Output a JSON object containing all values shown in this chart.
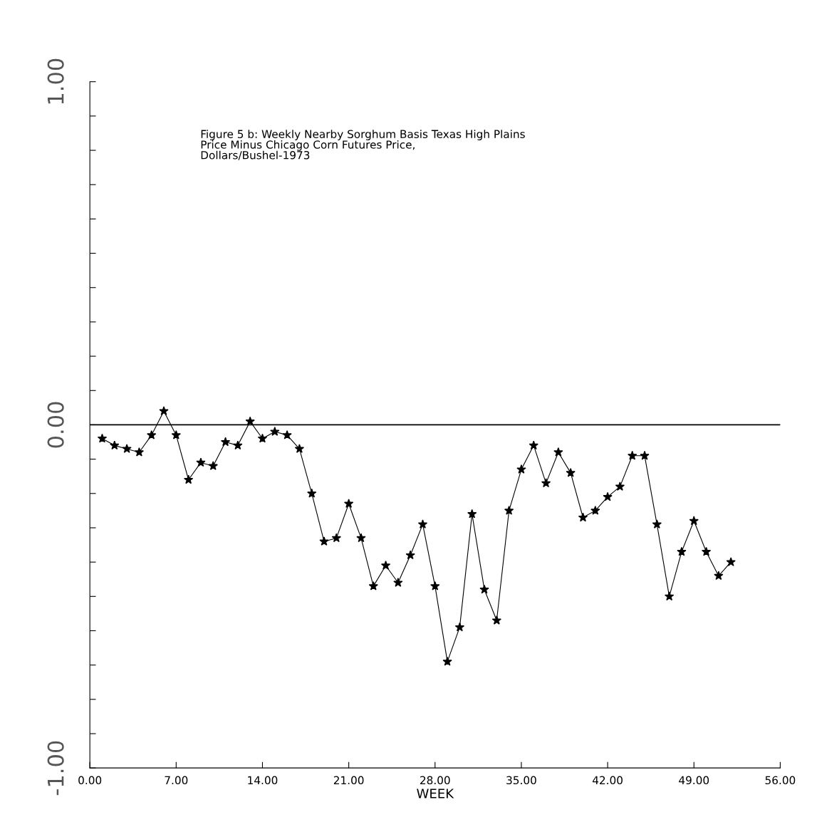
{
  "chart_data": {
    "type": "line",
    "title": "Figure 5 b: Weekly Nearby Sorghum Basis Texas High Plains\nPrice Minus Chicago Corn Futures Price,\nDollars/Bushel-1973",
    "xlabel": "WEEK",
    "x": [
      1,
      2,
      3,
      4,
      5,
      6,
      7,
      8,
      9,
      10,
      11,
      12,
      13,
      14,
      15,
      16,
      17,
      18,
      19,
      20,
      21,
      22,
      23,
      24,
      25,
      26,
      27,
      28,
      29,
      30,
      31,
      32,
      33,
      34,
      35,
      36,
      37,
      38,
      39,
      40,
      41,
      42,
      43,
      44,
      45,
      46,
      47,
      48,
      49,
      50,
      51,
      52
    ],
    "values": [
      -0.04,
      -0.06,
      -0.07,
      -0.08,
      -0.03,
      0.04,
      -0.03,
      -0.16,
      -0.11,
      -0.12,
      -0.05,
      -0.06,
      0.01,
      -0.04,
      -0.02,
      -0.03,
      -0.07,
      -0.2,
      -0.34,
      -0.33,
      -0.23,
      -0.33,
      -0.47,
      -0.41,
      -0.46,
      -0.38,
      -0.29,
      -0.47,
      -0.69,
      -0.59,
      -0.26,
      -0.48,
      -0.57,
      -0.25,
      -0.13,
      -0.06,
      -0.17,
      -0.08,
      -0.14,
      -0.27,
      -0.25,
      -0.21,
      -0.18,
      -0.09,
      -0.09,
      -0.29,
      -0.5,
      -0.37,
      -0.28,
      -0.37,
      -0.44,
      -0.4
    ],
    "color": "#000000",
    "marker": "star",
    "line_style": "solid",
    "grid": false,
    "legend": false,
    "xlim": [
      0,
      56
    ],
    "xticks": [
      {
        "value": 0,
        "label": "0.00"
      },
      {
        "value": 7,
        "label": "7.00"
      },
      {
        "value": 14,
        "label": "14.00"
      },
      {
        "value": 21,
        "label": "21.00"
      },
      {
        "value": 28,
        "label": "28.00"
      },
      {
        "value": 35,
        "label": "35.00"
      },
      {
        "value": 42,
        "label": "42.00"
      },
      {
        "value": 49,
        "label": "49.00"
      },
      {
        "value": 56,
        "label": "56.00"
      }
    ],
    "ylim": [
      -1,
      1
    ],
    "yticks": [
      {
        "value": -1,
        "label": "-1.00"
      },
      {
        "value": -0.9,
        "label": null
      },
      {
        "value": -0.8,
        "label": null
      },
      {
        "value": -0.7,
        "label": null
      },
      {
        "value": -0.6,
        "label": null
      },
      {
        "value": -0.5,
        "label": null
      },
      {
        "value": -0.4,
        "label": null
      },
      {
        "value": -0.3,
        "label": null
      },
      {
        "value": -0.2,
        "label": null
      },
      {
        "value": -0.1,
        "label": null
      },
      {
        "value": 0,
        "label": "0.00"
      },
      {
        "value": 0.1,
        "label": null
      },
      {
        "value": 0.2,
        "label": null
      },
      {
        "value": 0.3,
        "label": null
      },
      {
        "value": 0.4,
        "label": null
      },
      {
        "value": 0.5,
        "label": null
      },
      {
        "value": 0.6,
        "label": null
      },
      {
        "value": 0.7,
        "label": null
      },
      {
        "value": 0.8,
        "label": null
      },
      {
        "value": 0.9,
        "label": null
      },
      {
        "value": 1,
        "label": "1.00"
      }
    ],
    "ref_lines": [
      {
        "axis": "y",
        "value": 0,
        "color": "#000000",
        "line_style": "solid"
      }
    ]
  }
}
